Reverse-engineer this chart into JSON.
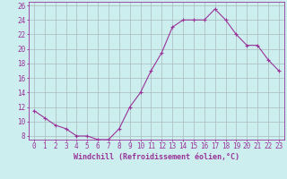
{
  "x": [
    0,
    1,
    2,
    3,
    4,
    5,
    6,
    7,
    8,
    9,
    10,
    11,
    12,
    13,
    14,
    15,
    16,
    17,
    18,
    19,
    20,
    21,
    22,
    23
  ],
  "y": [
    11.5,
    10.5,
    9.5,
    9.0,
    8.0,
    8.0,
    7.5,
    7.5,
    9.0,
    12.0,
    14.0,
    17.0,
    19.5,
    23.0,
    24.0,
    24.0,
    24.0,
    25.5,
    24.0,
    22.0,
    20.5,
    20.5,
    18.5,
    17.0
  ],
  "line_color": "#993399",
  "marker": "+",
  "xlabel": "Windchill (Refroidissement éolien,°C)",
  "bg_color": "#cceeee",
  "grid_color": "#aabbbb",
  "ylim": [
    7.5,
    26.5
  ],
  "xlim": [
    -0.5,
    23.5
  ],
  "yticks": [
    8,
    10,
    12,
    14,
    16,
    18,
    20,
    22,
    24,
    26
  ],
  "xticks": [
    0,
    1,
    2,
    3,
    4,
    5,
    6,
    7,
    8,
    9,
    10,
    11,
    12,
    13,
    14,
    15,
    16,
    17,
    18,
    19,
    20,
    21,
    22,
    23
  ],
  "font_size": 5.5,
  "xlabel_font_size": 6.0,
  "line_width": 0.8,
  "marker_size": 3.5
}
